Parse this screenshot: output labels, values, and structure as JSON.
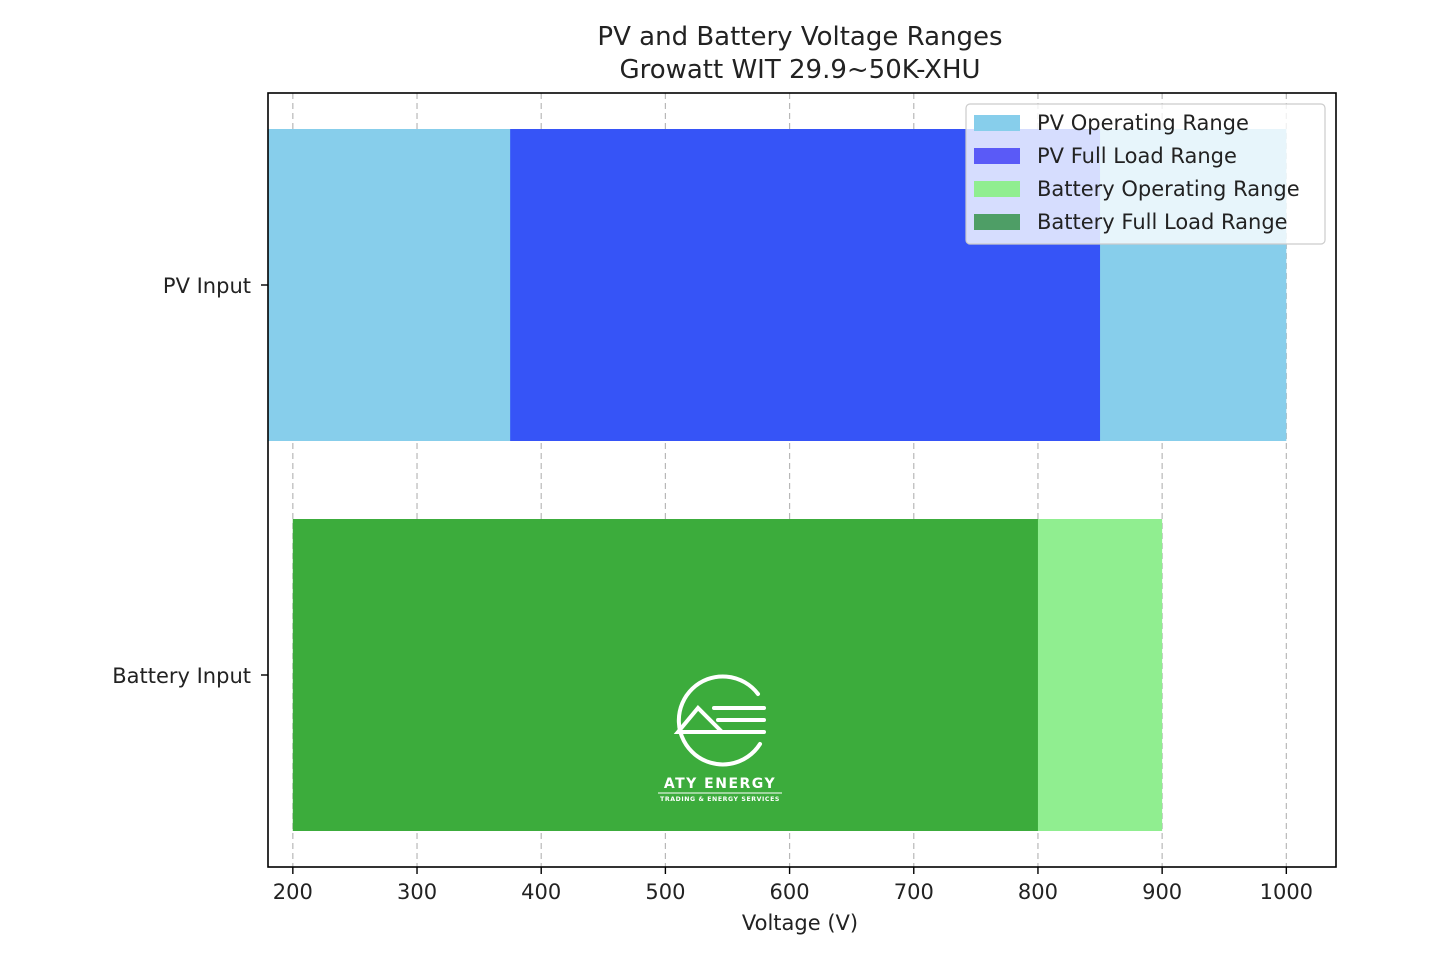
{
  "chart_data": {
    "type": "bar",
    "orientation": "horizontal",
    "title": "PV and Battery Voltage Ranges",
    "subtitle": "Growatt WIT 29.9~50K-XHU",
    "xlabel": "Voltage (V)",
    "ylabel": "",
    "xlim": [
      180,
      1040
    ],
    "xticks": [
      200,
      300,
      400,
      500,
      600,
      700,
      800,
      900,
      1000
    ],
    "grid": "x-dashed",
    "legend_position": "top-right",
    "categories": [
      "PV Input",
      "Battery Input"
    ],
    "series": [
      {
        "name": "PV Operating Range",
        "color": "#87ceeb",
        "ranges": [
          [
            180,
            1000
          ],
          null
        ]
      },
      {
        "name": "PV Full Load Range",
        "color": "#3654f7",
        "ranges": [
          [
            375,
            850
          ],
          null
        ]
      },
      {
        "name": "Battery Operating Range",
        "color": "#90ee90",
        "ranges": [
          null,
          [
            200,
            900
          ]
        ]
      },
      {
        "name": "Battery Full Load Range",
        "color": "#3cac3c",
        "ranges": [
          null,
          [
            200,
            800
          ]
        ]
      }
    ]
  },
  "legend_colors": [
    "#87ceeb",
    "#5a5af7",
    "#90ee90",
    "#4e9e66"
  ],
  "watermark": {
    "name": "ATY ENERGY",
    "tagline": "TRADING & ENERGY SERVICES"
  }
}
